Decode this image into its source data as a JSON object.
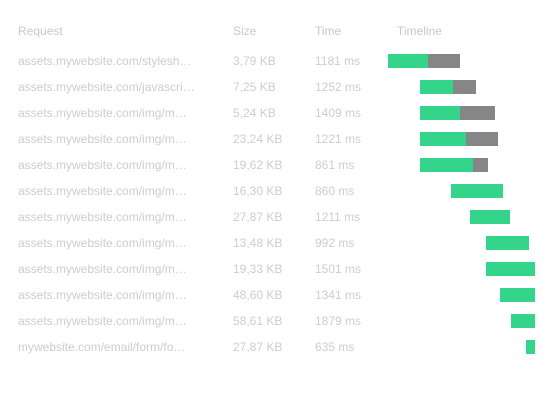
{
  "header": {
    "request": "Request",
    "size": "Size",
    "time": "Time",
    "timeline": "Timeline"
  },
  "colors": {
    "waiting": "#34d48b",
    "receiving": "#868686"
  },
  "rows": [
    {
      "request": "assets.mywebsite.com/stylesh…",
      "size": "3,79 KB",
      "time": "1181 ms",
      "wait_start": 0.0,
      "wait_end": 0.27,
      "recv_end": 0.49
    },
    {
      "request": "assets.mywebsite.com/javascri…",
      "size": "7,25 KB",
      "time": "1252 ms",
      "wait_start": 0.22,
      "wait_end": 0.44,
      "recv_end": 0.6
    },
    {
      "request": "assets.mywebsite.com/img/m…",
      "size": "5,24 KB",
      "time": "1409 ms",
      "wait_start": 0.22,
      "wait_end": 0.49,
      "recv_end": 0.73
    },
    {
      "request": "assets.mywebsite.com/img/m…",
      "size": "23,24 KB",
      "time": "1221 ms",
      "wait_start": 0.22,
      "wait_end": 0.53,
      "recv_end": 0.75
    },
    {
      "request": "assets.mywebsite.com/img/m…",
      "size": "19,62 KB",
      "time": "861 ms",
      "wait_start": 0.22,
      "wait_end": 0.58,
      "recv_end": 0.68
    },
    {
      "request": "assets.mywebsite.com/img/m…",
      "size": "16,30 KB",
      "time": "860 ms",
      "wait_start": 0.43,
      "wait_end": 0.78,
      "recv_end": 0.78
    },
    {
      "request": "assets.mywebsite.com/img/m…",
      "size": "27,87 KB",
      "time": "1211 ms",
      "wait_start": 0.56,
      "wait_end": 0.83,
      "recv_end": 0.83
    },
    {
      "request": "assets.mywebsite.com/img/m…",
      "size": "13,48 KB",
      "time": "992 ms",
      "wait_start": 0.67,
      "wait_end": 0.96,
      "recv_end": 0.96
    },
    {
      "request": "assets.mywebsite.com/img/m…",
      "size": "19,33 KB",
      "time": "1501 ms",
      "wait_start": 0.67,
      "wait_end": 1.0,
      "recv_end": 1.0
    },
    {
      "request": "assets.mywebsite.com/img/m…",
      "size": "48,60 KB",
      "time": "1341 ms",
      "wait_start": 0.76,
      "wait_end": 1.0,
      "recv_end": 1.0
    },
    {
      "request": "assets.mywebsite.com/img/m…",
      "size": "58,61 KB",
      "time": "1879 ms",
      "wait_start": 0.84,
      "wait_end": 1.0,
      "recv_end": 1.0
    },
    {
      "request": "mywebsite.com/email/form/fo…",
      "size": "27,87 KB",
      "time": "635 ms",
      "wait_start": 0.94,
      "wait_end": 1.0,
      "recv_end": 1.0
    }
  ]
}
